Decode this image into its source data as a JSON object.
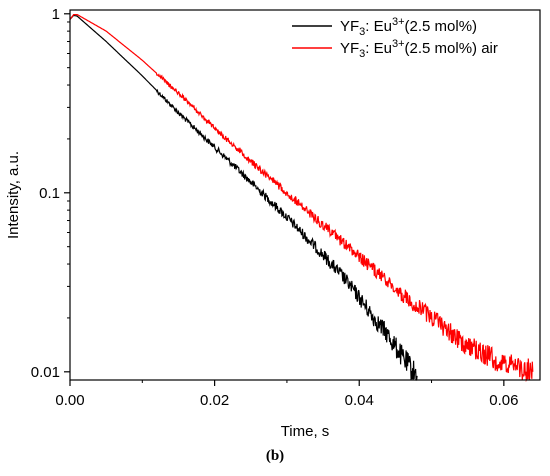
{
  "caption": "(b)",
  "chart_data": {
    "type": "line",
    "xlabel": "Time, s",
    "ylabel": "Intensity, a.u.",
    "yscale": "log",
    "xlim": [
      0.0,
      0.065
    ],
    "ylim": [
      0.009,
      1.05
    ],
    "x_ticks": [
      {
        "value": 0.0,
        "label": "0.00"
      },
      {
        "value": 0.02,
        "label": "0.02"
      },
      {
        "value": 0.04,
        "label": "0.04"
      },
      {
        "value": 0.06,
        "label": "0.06"
      }
    ],
    "y_ticks": [
      {
        "value": 0.01,
        "label": "0.01"
      },
      {
        "value": 0.1,
        "label": "0.1"
      },
      {
        "value": 1,
        "label": "1"
      }
    ],
    "grid": false,
    "legend_position": "top-right",
    "series": [
      {
        "name": "YF₃: Eu³⁺(2.5 mol%)",
        "legend_parts": {
          "base": "YF",
          "sub": "3",
          "mid": ": Eu",
          "sup": "3+",
          "tail": "(2.5 mol%)"
        },
        "color": "#000000",
        "x": [
          0.0,
          0.0005,
          0.001,
          0.005,
          0.01,
          0.015,
          0.02,
          0.025,
          0.03,
          0.035,
          0.038,
          0.04,
          0.042,
          0.044,
          0.046,
          0.048
        ],
        "y": [
          0.93,
          0.98,
          0.97,
          0.7,
          0.45,
          0.28,
          0.18,
          0.115,
          0.073,
          0.045,
          0.033,
          0.026,
          0.02,
          0.016,
          0.012,
          0.0095
        ]
      },
      {
        "name": "YF₃: Eu³⁺(2.5 mol%) air",
        "legend_parts": {
          "base": "YF",
          "sub": "3",
          "mid": ": Eu",
          "sup": "3+",
          "tail": "(2.5 mol%) air"
        },
        "color": "#ff0000",
        "x": [
          0.0,
          0.0005,
          0.001,
          0.005,
          0.01,
          0.015,
          0.02,
          0.025,
          0.03,
          0.035,
          0.04,
          0.045,
          0.05,
          0.055,
          0.06,
          0.064
        ],
        "y": [
          0.93,
          0.99,
          0.99,
          0.8,
          0.55,
          0.36,
          0.23,
          0.15,
          0.1,
          0.066,
          0.044,
          0.029,
          0.02,
          0.014,
          0.011,
          0.01
        ]
      }
    ]
  }
}
